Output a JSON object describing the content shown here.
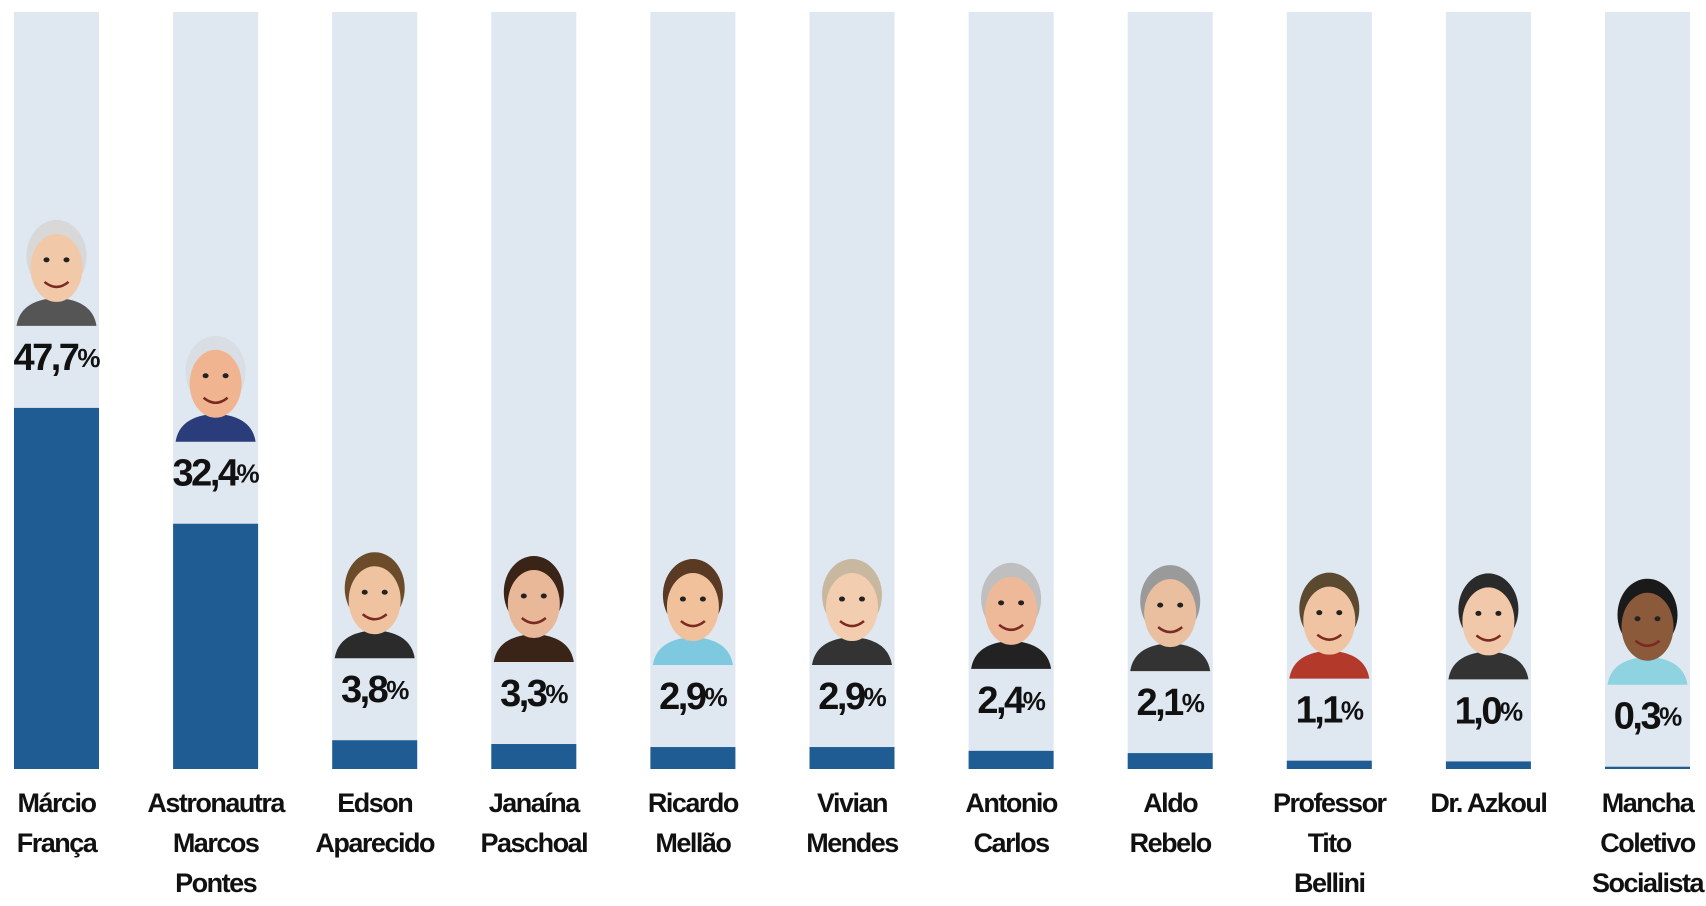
{
  "chart_data": {
    "type": "bar",
    "categories": [
      "Márcio\nFrança",
      "Astronautra\nMarcos\nPontes",
      "Edson\nAparecido",
      "Janaína\nPaschoal",
      "Ricardo\nMellão",
      "Vivian\nMendes",
      "Antonio\nCarlos",
      "Aldo\nRebelo",
      "Professor\nTito\nBellini",
      "Dr. Azkoul",
      "Mancha\nColetivo\nSocialista"
    ],
    "values": [
      47.7,
      32.4,
      3.8,
      3.3,
      2.9,
      2.9,
      2.4,
      2.1,
      1.1,
      1.0,
      0.3
    ],
    "value_labels": [
      "47,7%",
      "32,4%",
      "3,8%",
      "3,3%",
      "2,9%",
      "2,9%",
      "2,4%",
      "2,1%",
      "1,1%",
      "1,0%",
      "0,3%"
    ],
    "color": "#1f5c94",
    "track_color": "#dfe7f1",
    "ylim": [
      0,
      100
    ]
  }
}
